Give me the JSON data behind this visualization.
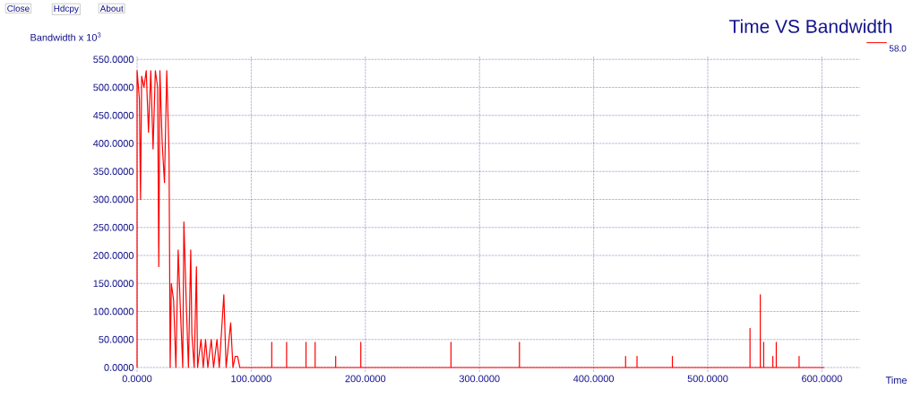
{
  "chart_data": {
    "type": "line",
    "title": "Time VS Bandwidth",
    "ylabel": "Bandwidth x 10$^{3}$",
    "xlabel": "Time",
    "annotations": [
      "Close",
      "Hdcpy",
      "About"
    ],
    "series": [
      {
        "name": "58.0",
        "color": "#ff0000",
        "x": [
          0,
          0,
          2,
          3,
          4,
          6,
          8,
          10,
          12,
          14,
          16,
          18,
          19,
          20,
          22,
          24,
          26,
          28,
          29,
          30,
          32,
          34,
          36,
          38,
          40,
          41,
          43,
          45,
          47,
          48,
          50,
          52,
          53,
          56,
          58,
          60,
          62,
          65,
          67,
          70,
          72,
          76,
          78,
          82,
          84,
          86,
          88,
          90,
          118,
          118,
          118,
          131,
          131,
          131,
          148,
          148,
          148,
          156,
          156,
          156,
          174,
          174,
          174,
          196,
          196,
          196,
          275,
          275,
          275,
          335,
          335,
          335,
          428,
          428,
          428,
          438,
          438,
          438,
          469,
          469,
          469,
          537,
          537,
          537,
          546,
          546,
          546,
          549,
          549,
          549,
          557,
          557,
          557,
          560,
          560,
          560,
          580,
          580,
          580,
          602
        ],
        "values": [
          0,
          530,
          480,
          300,
          520,
          500,
          530,
          420,
          530,
          390,
          530,
          500,
          180,
          530,
          400,
          330,
          530,
          380,
          0,
          150,
          120,
          0,
          210,
          100,
          0,
          260,
          120,
          0,
          210,
          60,
          0,
          180,
          0,
          50,
          0,
          50,
          0,
          50,
          0,
          50,
          0,
          130,
          0,
          80,
          0,
          20,
          20,
          0,
          0,
          45,
          0,
          0,
          45,
          0,
          0,
          45,
          0,
          0,
          45,
          0,
          0,
          20,
          0,
          0,
          45,
          0,
          0,
          45,
          0,
          0,
          45,
          0,
          0,
          20,
          0,
          0,
          20,
          0,
          0,
          20,
          0,
          0,
          70,
          0,
          0,
          130,
          0,
          0,
          45,
          0,
          0,
          20,
          0,
          0,
          45,
          0,
          0,
          20,
          0,
          0
        ]
      }
    ],
    "xlim": [
      0,
      633
    ],
    "ylim": [
      -8,
      555
    ],
    "xticks": [
      {
        "value": 0,
        "label": "0.0000"
      },
      {
        "value": 100,
        "label": "100.0000"
      },
      {
        "value": 200,
        "label": "200.0000"
      },
      {
        "value": 300,
        "label": "300.0000"
      },
      {
        "value": 400,
        "label": "400.0000"
      },
      {
        "value": 500,
        "label": "500.0000"
      },
      {
        "value": 600,
        "label": "600.0000"
      }
    ],
    "yticks": [
      {
        "value": 0,
        "label": "0.0000"
      },
      {
        "value": 50,
        "label": "50.0000"
      },
      {
        "value": 100,
        "label": "100.0000"
      },
      {
        "value": 150,
        "label": "150.0000"
      },
      {
        "value": 200,
        "label": "200.0000"
      },
      {
        "value": 250,
        "label": "250.0000"
      },
      {
        "value": 300,
        "label": "300.0000"
      },
      {
        "value": 350,
        "label": "350.0000"
      },
      {
        "value": 400,
        "label": "400.0000"
      },
      {
        "value": 450,
        "label": "450.0000"
      },
      {
        "value": 500,
        "label": "500.0000"
      },
      {
        "value": 550,
        "label": "550.0000"
      }
    ],
    "grid": true,
    "legend": "top right"
  }
}
